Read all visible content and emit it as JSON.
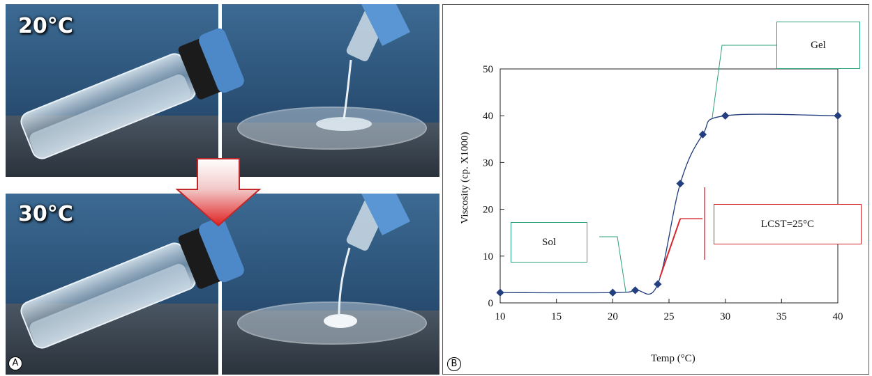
{
  "panel_a": {
    "letter": "A",
    "top_temp": "20°C",
    "bottom_temp": "30°C"
  },
  "panel_b": {
    "letter": "B",
    "annotations": {
      "gel": "Gel",
      "sol": "Sol",
      "lcst": "LCST=25°C"
    }
  },
  "colors": {
    "curve": "#1f3a7a",
    "marker": "#243f7f",
    "annotation_green": "#2aa07c",
    "annotation_red": "#d3262e",
    "arrow_red": "#e02020",
    "photo_background": "#1d3550"
  },
  "chart_data": {
    "type": "line",
    "xlabel": "Temp (°C)",
    "ylabel": "Viscosity (cp. X1000)",
    "xlim": [
      10,
      40
    ],
    "ylim": [
      0,
      50
    ],
    "xticks": [
      10,
      15,
      20,
      25,
      30,
      35,
      40
    ],
    "yticks": [
      0,
      10,
      20,
      30,
      40,
      50
    ],
    "grid": false,
    "series": [
      {
        "x": [
          10,
          20,
          22,
          24,
          26,
          28,
          30,
          40
        ],
        "y": [
          2.2,
          2.2,
          2.7,
          4.0,
          25.5,
          36.0,
          40.0,
          40.0
        ]
      }
    ],
    "annotations": [
      {
        "text": "Gel",
        "target": [
          29,
          41
        ]
      },
      {
        "text": "Sol",
        "target": [
          21,
          2.4
        ]
      },
      {
        "text": "LCST=25°C",
        "target": [
          24.2,
          6
        ]
      }
    ]
  }
}
